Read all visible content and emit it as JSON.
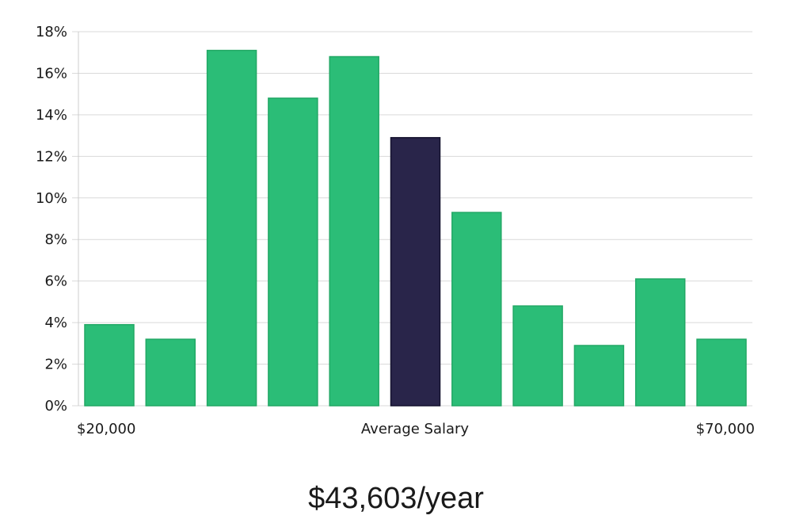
{
  "chart_data": {
    "type": "bar",
    "title": "",
    "xlabel": "Average Salary",
    "ylabel": "",
    "ylim": [
      0,
      18
    ],
    "y_ticks": [
      0,
      2,
      4,
      6,
      8,
      10,
      12,
      14,
      16,
      18
    ],
    "y_tick_suffix": "%",
    "x_start_label": "$20,000",
    "x_end_label": "$70,000",
    "values": [
      3.9,
      3.2,
      17.1,
      14.8,
      16.8,
      12.9,
      9.3,
      4.8,
      2.9,
      6.1,
      3.2
    ],
    "highlight_index": 5,
    "grid": true
  },
  "colors": {
    "bar": "#2bbd77",
    "bar_stroke": "#22a865",
    "highlight": "#29254a",
    "highlight_stroke": "#14122e"
  },
  "summary": {
    "average_salary": "$43,603/year"
  }
}
